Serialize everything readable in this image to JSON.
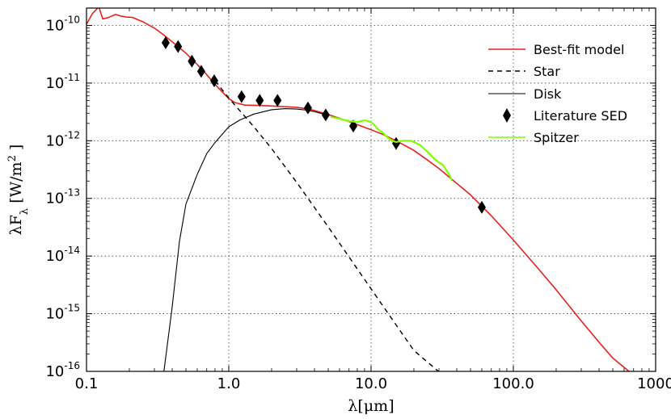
{
  "colors": {
    "model": "#e8211c",
    "star": "#000000",
    "disk": "#000000",
    "literature": "#000000",
    "spitzer": "#7fff00"
  },
  "chart_data": {
    "type": "line",
    "xlabel": "λ[μm]",
    "ylabel": "λF_λ [W/m²]",
    "ylabel_parts": {
      "pre": "λF",
      "sub": "λ",
      "mid": " [W/m",
      "sup": "2",
      "post": " ]"
    },
    "xscale": "log",
    "yscale": "log",
    "xlim": [
      0.1,
      1000
    ],
    "ylim": [
      1e-16,
      2e-10
    ],
    "grid": true,
    "legend_position": "top-right",
    "x_ticks": [
      "0.1",
      "1.0",
      "10.0",
      "100.0",
      "1000"
    ],
    "x_tick_values": [
      0.1,
      1,
      10,
      100,
      1000
    ],
    "y_ticks": [
      {
        "value": 1e-10,
        "base": "10",
        "exp": "-10"
      },
      {
        "value": 1e-11,
        "base": "10",
        "exp": "-11"
      },
      {
        "value": 1e-12,
        "base": "10",
        "exp": "-12"
      },
      {
        "value": 1e-13,
        "base": "10",
        "exp": "-13"
      },
      {
        "value": 1e-14,
        "base": "10",
        "exp": "-14"
      },
      {
        "value": 1e-15,
        "base": "10",
        "exp": "-15"
      },
      {
        "value": 1e-16,
        "base": "10",
        "exp": "-16"
      }
    ],
    "series": [
      {
        "name": "Best-fit model",
        "style": "solid",
        "color_key": "model",
        "x": [
          0.1,
          0.11,
          0.122,
          0.13,
          0.14,
          0.16,
          0.175,
          0.19,
          0.21,
          0.25,
          0.3,
          0.35,
          0.4,
          0.5,
          0.6,
          0.7,
          0.8,
          0.9,
          1.0,
          1.1,
          1.3,
          1.6,
          2.0,
          2.5,
          3.0,
          3.6,
          4.0,
          5.0,
          6.0,
          7.0,
          8.0,
          10.0,
          12.0,
          15.0,
          20.0,
          25.0,
          30.0,
          35.0,
          50.0,
          70.0,
          100.0,
          150.0,
          200.0,
          300.0,
          400.0,
          500.0,
          650.0
        ],
        "y": [
          1.05e-10,
          1.6e-10,
          2.1e-10,
          1.3e-10,
          1.35e-10,
          1.55e-10,
          1.45e-10,
          1.4e-10,
          1.38e-10,
          1.15e-10,
          9e-11,
          6.8e-11,
          5.2e-11,
          3.3e-11,
          2.1e-11,
          1.4e-11,
          9.5e-12,
          7e-12,
          5.4e-12,
          4.6e-12,
          4.15e-12,
          4.1e-12,
          4e-12,
          3.9e-12,
          3.8e-12,
          3.55e-12,
          3.35e-12,
          2.85e-12,
          2.45e-12,
          2.15e-12,
          1.9e-12,
          1.55e-12,
          1.3e-12,
          1e-12,
          6.8e-13,
          4.6e-13,
          3.3e-13,
          2.4e-13,
          1.15e-13,
          5e-14,
          1.9e-14,
          6e-15,
          2.6e-15,
          7.5e-16,
          3.2e-16,
          1.7e-16,
          1e-16
        ]
      },
      {
        "name": "Star",
        "style": "dashed",
        "color_key": "star",
        "x": [
          0.8,
          1.0,
          1.5,
          2.0,
          3.0,
          5.0,
          10.0,
          20.0,
          30.0,
          40.0
        ],
        "y": [
          1.1e-11,
          5.5e-12,
          1.75e-12,
          7.3e-13,
          1.9e-13,
          3.2e-14,
          2.7e-15,
          2.3e-16,
          9.8e-17,
          5.6e-17
        ]
      },
      {
        "name": "Disk",
        "style": "solid",
        "color_key": "disk",
        "x": [
          0.35,
          0.4,
          0.45,
          0.5,
          0.6,
          0.7,
          0.8,
          1.0,
          1.2,
          1.5,
          2.0,
          2.5,
          3.0,
          3.5,
          4.0,
          5.0
        ],
        "y": [
          1e-16,
          1.3e-15,
          1.8e-14,
          8e-14,
          2.6e-13,
          6e-13,
          9.3e-13,
          1.75e-12,
          2.3e-12,
          2.9e-12,
          3.45e-12,
          3.6e-12,
          3.55e-12,
          3.4e-12,
          3.2e-12,
          2.75e-12
        ]
      },
      {
        "name": "Literature SED",
        "style": "marker",
        "color_key": "literature",
        "x": [
          0.36,
          0.44,
          0.55,
          0.64,
          0.79,
          1.23,
          1.65,
          2.2,
          3.6,
          4.8,
          7.5,
          15.0,
          60.0
        ],
        "y": [
          5e-11,
          4.3e-11,
          2.4e-11,
          1.6e-11,
          1.1e-11,
          5.8e-12,
          5e-12,
          5e-12,
          3.7e-12,
          2.8e-12,
          1.8e-12,
          9e-13,
          7e-14
        ]
      },
      {
        "name": "Spitzer",
        "style": "solid",
        "color_key": "spitzer",
        "x": [
          5.2,
          6.0,
          7.0,
          8.0,
          8.5,
          9.0,
          9.5,
          10.0,
          10.5,
          11.0,
          11.5,
          12.0,
          13.0,
          14.0,
          15.0,
          16.0,
          17.0,
          18.0,
          19.0,
          20.0,
          22.0,
          24.0,
          26.0,
          28.0,
          30.0,
          32.0,
          34.0,
          36.0,
          37.0
        ],
        "y": [
          2.6e-12,
          2.4e-12,
          2.2e-12,
          2.1e-12,
          2.2e-12,
          2.25e-12,
          2.2e-12,
          2.1e-12,
          1.9e-12,
          1.65e-12,
          1.5e-12,
          1.4e-12,
          1.15e-12,
          1e-12,
          9.5e-13,
          9.8e-13,
          1e-12,
          1e-12,
          1e-12,
          9.5e-13,
          8.5e-13,
          7e-13,
          5.8e-13,
          4.8e-13,
          4.2e-13,
          3.8e-13,
          3e-13,
          2.4e-13,
          2e-13
        ]
      }
    ]
  }
}
